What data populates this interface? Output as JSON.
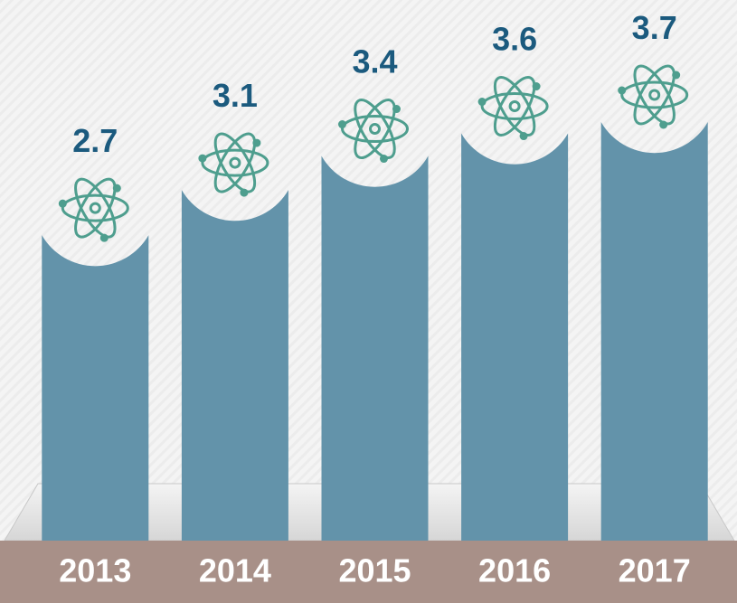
{
  "chart_data": {
    "type": "bar",
    "categories": [
      "2013",
      "2014",
      "2015",
      "2016",
      "2017"
    ],
    "values": [
      2.7,
      3.1,
      3.4,
      3.6,
      3.7
    ],
    "color": "#6393aa"
  }
}
